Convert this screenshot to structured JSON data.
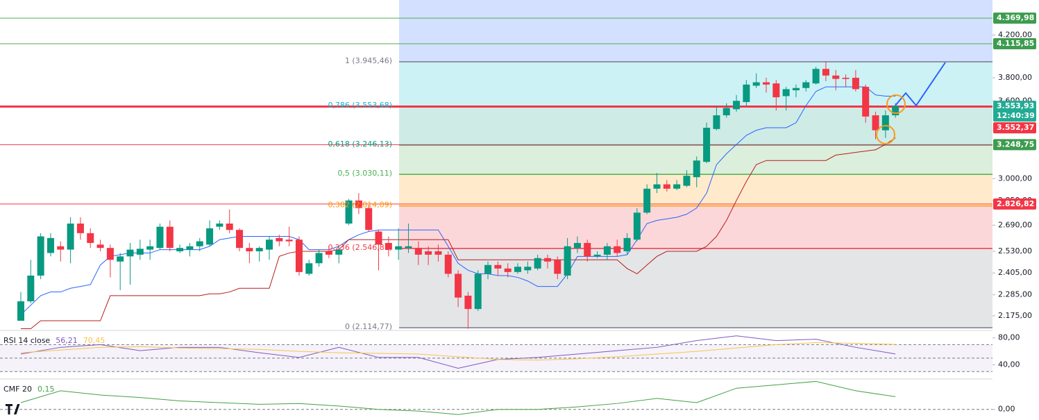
{
  "chart_data": [
    {
      "type": "candlestick",
      "log_scale": true,
      "up_color": "#089981",
      "down_color": "#f23645",
      "ylim": [
        2105,
        4560
      ],
      "yticks": [
        {
          "value": 4200,
          "label": "4.200,00"
        },
        {
          "value": 3800,
          "label": "3.800,00"
        },
        {
          "value": 3600,
          "label": "3.600,00"
        },
        {
          "value": 3000,
          "label": "3.000,00"
        },
        {
          "value": 2850,
          "label": "2.850,00"
        },
        {
          "value": 2690,
          "label": "2.690,00"
        },
        {
          "value": 2530,
          "label": "2.530,00"
        },
        {
          "value": 2405,
          "label": "2.405,00"
        },
        {
          "value": 2285,
          "label": "2.285,00"
        },
        {
          "value": 2175,
          "label": "2.175,00"
        }
      ],
      "candles": {
        "open": [
          2150,
          2250,
          2390,
          2520,
          2560,
          2540,
          2700,
          2640,
          2570,
          2550,
          2470,
          2500,
          2510,
          2540,
          2550,
          2680,
          2530,
          2540,
          2560,
          2570,
          2680,
          2700,
          2660,
          2550,
          2530,
          2540,
          2610,
          2600,
          2600,
          2400,
          2460,
          2530,
          2510,
          2700,
          2850,
          2800,
          2650,
          2580,
          2540,
          2550,
          2550,
          2530,
          2530,
          2510,
          2400,
          2280,
          2210,
          2400,
          2450,
          2430,
          2410,
          2420,
          2430,
          2490,
          2480,
          2390,
          2550,
          2580,
          2500,
          2510,
          2560,
          2530,
          2600,
          2770,
          2930,
          2960,
          2930,
          2950,
          3010,
          3120,
          3370,
          3480,
          3530,
          3590,
          3730,
          3760,
          3750,
          3640,
          3690,
          3710,
          3750,
          3880,
          3820,
          3800,
          3800,
          3720,
          3480,
          3360,
          3480
        ],
        "high": [
          2300,
          2480,
          2640,
          2640,
          2590,
          2740,
          2740,
          2670,
          2600,
          2570,
          2520,
          2580,
          2600,
          2600,
          2700,
          2720,
          2570,
          2580,
          2610,
          2720,
          2720,
          2790,
          2670,
          2580,
          2560,
          2620,
          2630,
          2680,
          2620,
          2480,
          2540,
          2560,
          2560,
          2860,
          2900,
          2820,
          2660,
          2620,
          2670,
          2700,
          2590,
          2560,
          2570,
          2530,
          2420,
          2300,
          2420,
          2470,
          2470,
          2460,
          2460,
          2470,
          2510,
          2510,
          2500,
          2610,
          2620,
          2600,
          2530,
          2580,
          2600,
          2640,
          2800,
          2960,
          3040,
          2990,
          2990,
          3060,
          3160,
          3420,
          3560,
          3580,
          3650,
          3780,
          3840,
          3800,
          3780,
          3720,
          3740,
          3780,
          3900,
          3950,
          3870,
          3830,
          3870,
          3740,
          3510,
          3520,
          3580
        ],
        "low": [
          2150,
          2240,
          2370,
          2500,
          2470,
          2460,
          2600,
          2550,
          2530,
          2380,
          2310,
          2340,
          2480,
          2480,
          2540,
          2530,
          2520,
          2500,
          2530,
          2560,
          2660,
          2640,
          2530,
          2460,
          2470,
          2480,
          2560,
          2560,
          2390,
          2390,
          2440,
          2490,
          2460,
          2690,
          2760,
          2650,
          2420,
          2500,
          2480,
          2520,
          2450,
          2450,
          2470,
          2380,
          2220,
          2110,
          2200,
          2370,
          2390,
          2380,
          2400,
          2400,
          2420,
          2430,
          2370,
          2370,
          2520,
          2470,
          2490,
          2480,
          2500,
          2510,
          2590,
          2760,
          2900,
          2910,
          2920,
          2940,
          2940,
          3110,
          3360,
          3460,
          3510,
          3560,
          3710,
          3670,
          3520,
          3520,
          3630,
          3680,
          3740,
          3770,
          3690,
          3720,
          3680,
          3420,
          3290,
          3300,
          3460
        ],
        "close": [
          2250,
          2390,
          2620,
          2610,
          2540,
          2700,
          2640,
          2580,
          2550,
          2480,
          2500,
          2540,
          2545,
          2560,
          2680,
          2550,
          2550,
          2560,
          2590,
          2670,
          2700,
          2660,
          2550,
          2530,
          2550,
          2600,
          2590,
          2590,
          2410,
          2460,
          2520,
          2510,
          2540,
          2850,
          2800,
          2660,
          2570,
          2540,
          2560,
          2560,
          2510,
          2510,
          2510,
          2400,
          2270,
          2210,
          2400,
          2450,
          2430,
          2410,
          2440,
          2440,
          2490,
          2470,
          2400,
          2560,
          2580,
          2500,
          2510,
          2560,
          2520,
          2610,
          2770,
          2930,
          2960,
          2930,
          2960,
          3020,
          3130,
          3380,
          3480,
          3540,
          3600,
          3740,
          3760,
          3740,
          3630,
          3700,
          3710,
          3760,
          3880,
          3820,
          3790,
          3790,
          3700,
          3470,
          3360,
          3480,
          3553.93
        ]
      },
      "lines": [
        {
          "color": "#2962ff",
          "values": [
            2180,
            2230,
            2280,
            2300,
            2300,
            2320,
            2330,
            2340,
            2450,
            2500,
            2510,
            2520,
            2520,
            2520,
            2540,
            2540,
            2540,
            2540,
            2540,
            2560,
            2600,
            2610,
            2620,
            2620,
            2620,
            2620,
            2620,
            2620,
            2600,
            2540,
            2540,
            2540,
            2560,
            2600,
            2630,
            2650,
            2660,
            2660,
            2660,
            2660,
            2660,
            2660,
            2660,
            2560,
            2460,
            2420,
            2400,
            2400,
            2390,
            2390,
            2380,
            2360,
            2330,
            2330,
            2330,
            2400,
            2500,
            2500,
            2500,
            2500,
            2500,
            2510,
            2600,
            2700,
            2720,
            2730,
            2740,
            2760,
            2800,
            2900,
            3100,
            3180,
            3250,
            3320,
            3360,
            3380,
            3380,
            3380,
            3420,
            3560,
            3680,
            3720,
            3720,
            3720,
            3720,
            3720,
            3650,
            3640,
            3640
          ]
        },
        {
          "color": "#b71c1c",
          "values": [
            2110,
            2110,
            2150,
            2150,
            2150,
            2150,
            2150,
            2150,
            2150,
            2280,
            2280,
            2280,
            2280,
            2280,
            2280,
            2280,
            2280,
            2280,
            2280,
            2290,
            2290,
            2300,
            2320,
            2320,
            2320,
            2320,
            2500,
            2520,
            2530,
            2530,
            2530,
            2530,
            2540,
            2600,
            2600,
            2600,
            2600,
            2600,
            2600,
            2600,
            2600,
            2600,
            2600,
            2600,
            2480,
            2480,
            2480,
            2480,
            2480,
            2480,
            2480,
            2480,
            2480,
            2480,
            2480,
            2480,
            2480,
            2480,
            2480,
            2480,
            2480,
            2430,
            2400,
            2450,
            2500,
            2530,
            2530,
            2530,
            2530,
            2560,
            2620,
            2720,
            2850,
            2980,
            3100,
            3130,
            3130,
            3130,
            3130,
            3130,
            3130,
            3130,
            3170,
            3180,
            3190,
            3200,
            3210,
            3250,
            3300
          ]
        }
      ],
      "fib_top_color": "#2962ff",
      "fib": [
        {
          "value": 3945.46,
          "label": "1 (3.945,46)",
          "color": "#787b86"
        },
        {
          "value": 3553.68,
          "label": "0,786 (3.553,68)",
          "color": "#00bcd4"
        },
        {
          "value": 3246.13,
          "label": "0,618 (3.246,13)",
          "color": "#089981"
        },
        {
          "value": 3030.11,
          "label": "0,5 (3.030,11)",
          "color": "#4caf50"
        },
        {
          "value": 2814.09,
          "label": "0,382 (2.814,09)",
          "color": "#ff9800"
        },
        {
          "value": 2546.81,
          "label": "0,236 (2.546,81)",
          "color": "#f23645"
        },
        {
          "value": 2114.77,
          "label": "0 (2.114,77)",
          "color": "#787b86"
        }
      ],
      "levels": [
        {
          "value": 4369.98,
          "label": "4.369,98",
          "color": "#4caf50",
          "tag_color": "#3d9c4f",
          "line_width": 1
        },
        {
          "value": 4115.85,
          "label": "4.115,85",
          "color": "#4caf50",
          "tag_color": "#3d9c4f",
          "line_width": 1
        },
        {
          "value": 3553.93,
          "label": "3.553,93",
          "countdown": "12:40:39",
          "color": "#22ab94",
          "tag_color": "#22ab94",
          "line_width": 0
        },
        {
          "value": 3552.37,
          "label": "3.552,37",
          "color": "#f23645",
          "tag_color": "#f23645",
          "line_width": 3
        },
        {
          "value": 3248.75,
          "label": "3.248,75",
          "color": "#f23645",
          "tag_color": "#3d9c4f",
          "line_width": 1
        },
        {
          "value": 2826.82,
          "label": "2.826,82",
          "color": "#f23645",
          "tag_color": "#f23645",
          "line_width": 1
        }
      ]
    },
    {
      "type": "line",
      "title": "RSI 14 close",
      "x": [
        0,
        4,
        8,
        12,
        16,
        20,
        24,
        28,
        32,
        36,
        40,
        44,
        48,
        52,
        56,
        60,
        64,
        68,
        72,
        76,
        80,
        84,
        88
      ],
      "ylim": [
        20,
        90
      ],
      "yticks": [
        {
          "value": 80,
          "label": "80,00"
        },
        {
          "value": 40,
          "label": "40,00"
        }
      ],
      "hlines": [
        70,
        50,
        30
      ],
      "band_color": "#7e57c2",
      "series": [
        {
          "color": "#7e57c2",
          "last_label": "56,21",
          "values": [
            56,
            66,
            70,
            61,
            66,
            66,
            58,
            51,
            66,
            51,
            51,
            35,
            48,
            51,
            56,
            61,
            66,
            76,
            83,
            76,
            78,
            66,
            56.21
          ]
        },
        {
          "color": "#f7c548",
          "last_label": "70,45",
          "values": [
            58,
            62,
            66,
            67,
            65,
            64,
            63,
            60,
            58,
            57,
            56,
            52,
            48,
            47,
            49,
            52,
            56,
            60,
            65,
            70,
            73,
            72,
            70.45
          ]
        }
      ]
    },
    {
      "type": "line",
      "title": "CMF 20",
      "x": [
        0,
        4,
        8,
        12,
        16,
        20,
        24,
        28,
        32,
        36,
        40,
        44,
        48,
        52,
        56,
        60,
        64,
        68,
        72,
        76,
        80,
        84,
        88
      ],
      "ylim": [
        -0.125,
        0.35
      ],
      "yticks": [
        {
          "value": 0,
          "label": "0,00"
        }
      ],
      "hlines": [
        0
      ],
      "series": [
        {
          "color": "#43a047",
          "last_label": "0,15",
          "values": [
            0.08,
            0.22,
            0.17,
            0.14,
            0.1,
            0.08,
            0.06,
            0.07,
            0.04,
            0,
            -0.02,
            -0.06,
            0,
            0,
            0.03,
            0.07,
            0.13,
            0.08,
            0.25,
            0.29,
            0.33,
            0.22,
            0.15
          ]
        }
      ]
    }
  ]
}
